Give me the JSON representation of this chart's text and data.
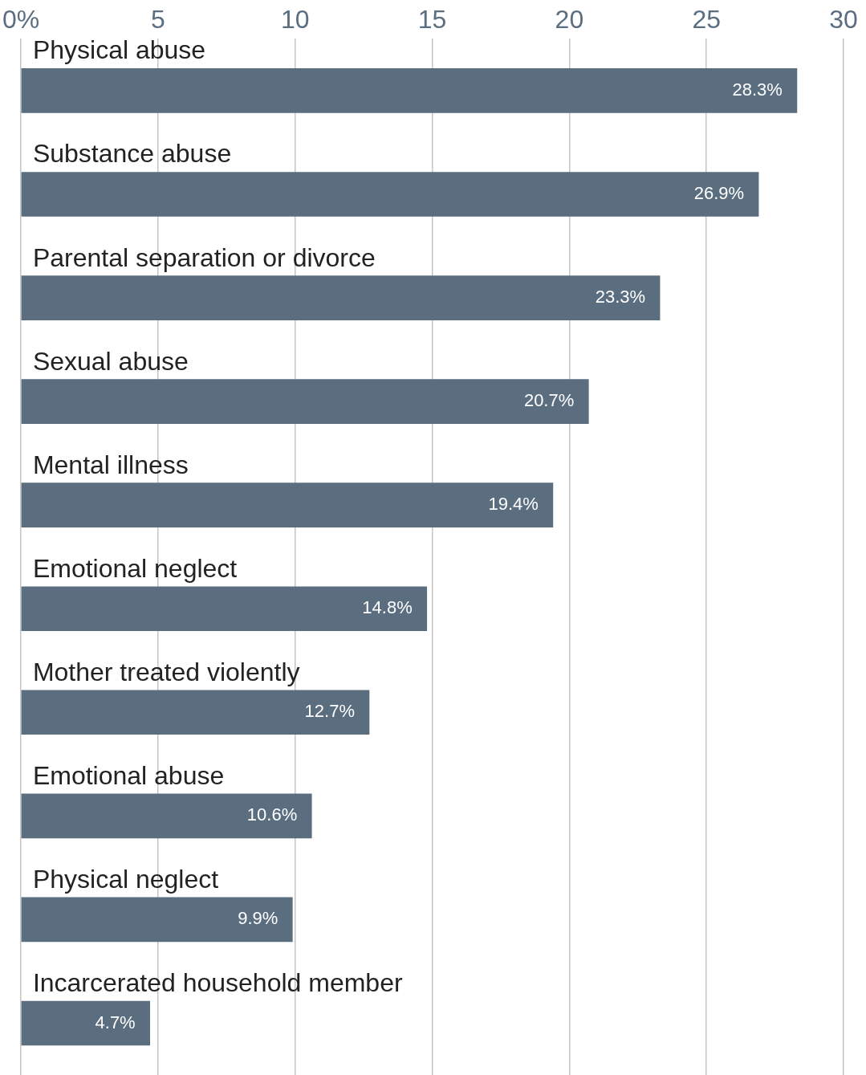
{
  "chart_data": {
    "type": "bar",
    "orientation": "horizontal",
    "categories": [
      "Physical abuse",
      "Substance abuse",
      "Parental separation or divorce",
      "Sexual abuse",
      "Mental illness",
      "Emotional neglect",
      "Mother treated violently",
      "Emotional abuse",
      "Physical neglect",
      "Incarcerated household member"
    ],
    "values": [
      28.3,
      26.9,
      23.3,
      20.7,
      19.4,
      14.8,
      12.7,
      10.6,
      9.9,
      4.7
    ],
    "value_labels": [
      "28.3%",
      "26.9%",
      "23.3%",
      "20.7%",
      "19.4%",
      "14.8%",
      "12.7%",
      "10.6%",
      "9.9%",
      "4.7%"
    ],
    "color": "#5a6e80",
    "xlim": [
      0,
      30
    ],
    "xticks": [
      {
        "value": 0,
        "label": "0%"
      },
      5,
      10,
      15,
      20,
      25,
      30
    ],
    "grid": "x",
    "legend": false
  }
}
